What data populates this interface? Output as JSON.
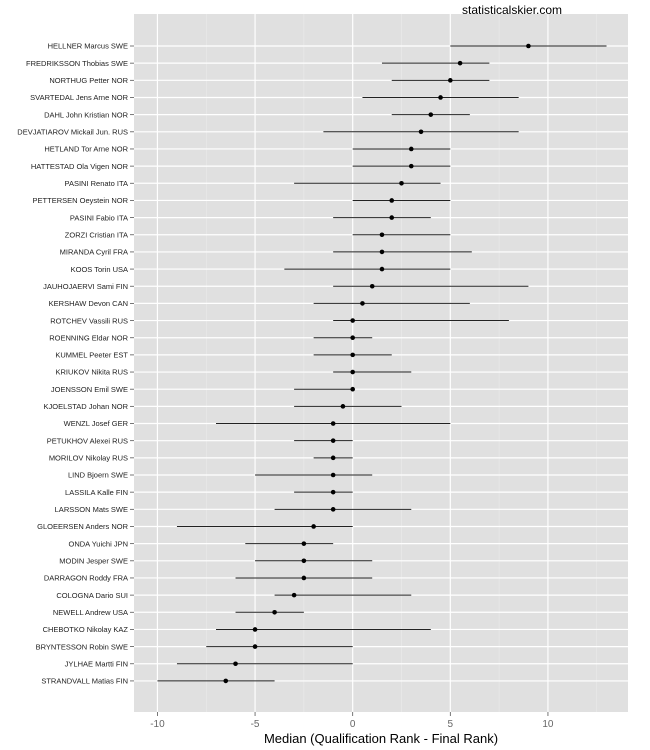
{
  "chart_data": {
    "type": "scatter",
    "subtype": "point-range",
    "watermark": "statisticalskier.com",
    "title": "",
    "xlabel": "Median (Qualification Rank - Final Rank)",
    "ylabel": "",
    "xlim": [
      -11.2,
      14.1
    ],
    "xticks": [
      -10,
      -5,
      0,
      5,
      10
    ],
    "xtick_labels": [
      "-10",
      "-5",
      "0",
      "5",
      "10"
    ],
    "grid": true,
    "colors": {
      "panel": "#e0e0e0",
      "grid": "#ffffff",
      "minor_grid": "#ebebeb",
      "line": "#222222",
      "point": "#000000"
    },
    "athletes": [
      {
        "name": "HELLNER Marcus SWE",
        "low": 5,
        "median": 9,
        "high": 13
      },
      {
        "name": "FREDRIKSSON Thobias SWE",
        "low": 1.5,
        "median": 5.5,
        "high": 7
      },
      {
        "name": "NORTHUG Petter NOR",
        "low": 2,
        "median": 5,
        "high": 7
      },
      {
        "name": "SVARTEDAL Jens Arne NOR",
        "low": 0.5,
        "median": 4.5,
        "high": 8.5
      },
      {
        "name": "DAHL John Kristian NOR",
        "low": 2,
        "median": 4,
        "high": 6
      },
      {
        "name": "DEVJATIAROV Mickail Jun. RUS",
        "low": -1.5,
        "median": 3.5,
        "high": 8.5
      },
      {
        "name": "HETLAND Tor Arne NOR",
        "low": 0,
        "median": 3,
        "high": 5
      },
      {
        "name": "HATTESTAD Ola Vigen NOR",
        "low": 0,
        "median": 3,
        "high": 5
      },
      {
        "name": "PASINI Renato ITA",
        "low": -3,
        "median": 2.5,
        "high": 4.5
      },
      {
        "name": "PETTERSEN Oeystein NOR",
        "low": 0,
        "median": 2,
        "high": 5
      },
      {
        "name": "PASINI Fabio ITA",
        "low": -1,
        "median": 2,
        "high": 4
      },
      {
        "name": "ZORZI Cristian ITA",
        "low": 0,
        "median": 1.5,
        "high": 5
      },
      {
        "name": "MIRANDA Cyril FRA",
        "low": -1,
        "median": 1.5,
        "high": 6.1
      },
      {
        "name": "KOOS Torin USA",
        "low": -3.5,
        "median": 1.5,
        "high": 5
      },
      {
        "name": "JAUHOJAERVI Sami FIN",
        "low": -1,
        "median": 1,
        "high": 9
      },
      {
        "name": "KERSHAW Devon CAN",
        "low": -2,
        "median": 0.5,
        "high": 6
      },
      {
        "name": "ROTCHEV Vassili RUS",
        "low": -1,
        "median": 0,
        "high": 8
      },
      {
        "name": "ROENNING Eldar NOR",
        "low": -2,
        "median": 0,
        "high": 1
      },
      {
        "name": "KUMMEL Peeter EST",
        "low": -2,
        "median": 0,
        "high": 2
      },
      {
        "name": "KRIUKOV Nikita RUS",
        "low": -1,
        "median": 0,
        "high": 3
      },
      {
        "name": "JOENSSON Emil SWE",
        "low": -3,
        "median": 0,
        "high": 0
      },
      {
        "name": "KJOELSTAD Johan NOR",
        "low": -3,
        "median": -0.5,
        "high": 2.5
      },
      {
        "name": "WENZL Josef GER",
        "low": -7,
        "median": -1,
        "high": 5
      },
      {
        "name": "PETUKHOV Alexei RUS",
        "low": -3,
        "median": -1,
        "high": 0
      },
      {
        "name": "MORILOV Nikolay RUS",
        "low": -2,
        "median": -1,
        "high": 0
      },
      {
        "name": "LIND Bjoern SWE",
        "low": -5,
        "median": -1,
        "high": 1
      },
      {
        "name": "LASSILA Kalle FIN",
        "low": -3,
        "median": -1,
        "high": 0
      },
      {
        "name": "LARSSON Mats SWE",
        "low": -4,
        "median": -1,
        "high": 3
      },
      {
        "name": "GLOEERSEN Anders NOR",
        "low": -9,
        "median": -2,
        "high": 0
      },
      {
        "name": "ONDA Yuichi JPN",
        "low": -5.5,
        "median": -2.5,
        "high": -1
      },
      {
        "name": "MODIN Jesper SWE",
        "low": -5,
        "median": -2.5,
        "high": 1
      },
      {
        "name": "DARRAGON Roddy FRA",
        "low": -6,
        "median": -2.5,
        "high": 1
      },
      {
        "name": "COLOGNA Dario SUI",
        "low": -4,
        "median": -3,
        "high": 3
      },
      {
        "name": "NEWELL Andrew USA",
        "low": -6,
        "median": -4,
        "high": -2.5
      },
      {
        "name": "CHEBOTKO Nikolay KAZ",
        "low": -7,
        "median": -5,
        "high": 4
      },
      {
        "name": "BRYNTESSON Robin SWE",
        "low": -7.5,
        "median": -5,
        "high": 0
      },
      {
        "name": "JYLHAE Martti FIN",
        "low": -9,
        "median": -6,
        "high": 0
      },
      {
        "name": "STRANDVALL Matias FIN",
        "low": -10,
        "median": -6.5,
        "high": -4
      }
    ]
  }
}
